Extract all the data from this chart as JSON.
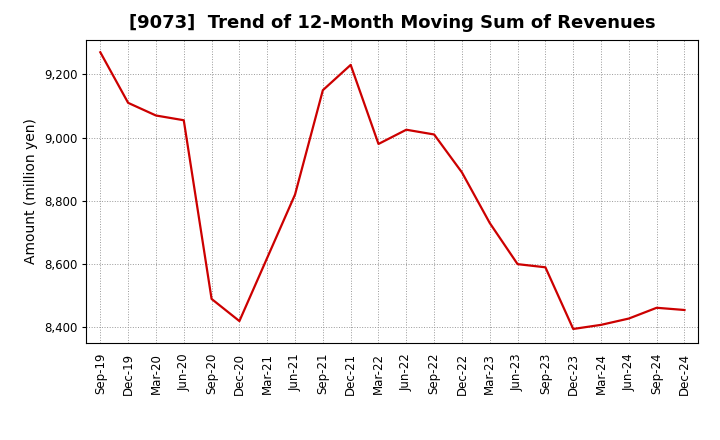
{
  "title": "[9073]  Trend of 12-Month Moving Sum of Revenues",
  "ylabel": "Amount (million yen)",
  "background_color": "#ffffff",
  "line_color": "#cc0000",
  "grid_color": "#999999",
  "x_labels": [
    "Sep-19",
    "Dec-19",
    "Mar-20",
    "Jun-20",
    "Sep-20",
    "Dec-20",
    "Mar-21",
    "Jun-21",
    "Sep-21",
    "Dec-21",
    "Mar-22",
    "Jun-22",
    "Sep-22",
    "Dec-22",
    "Mar-23",
    "Jun-23",
    "Sep-23",
    "Dec-23",
    "Mar-24",
    "Jun-24",
    "Sep-24",
    "Dec-24"
  ],
  "values": [
    9270,
    9110,
    9070,
    9055,
    8490,
    8420,
    8620,
    8820,
    9150,
    9230,
    8980,
    9025,
    9010,
    8890,
    8730,
    8600,
    8590,
    8395,
    8408,
    8428,
    8462,
    8455
  ],
  "ylim": [
    8350,
    9310
  ],
  "yticks": [
    8400,
    8600,
    8800,
    9000,
    9200
  ],
  "title_fontsize": 13,
  "axis_fontsize": 10,
  "tick_fontsize": 8.5
}
